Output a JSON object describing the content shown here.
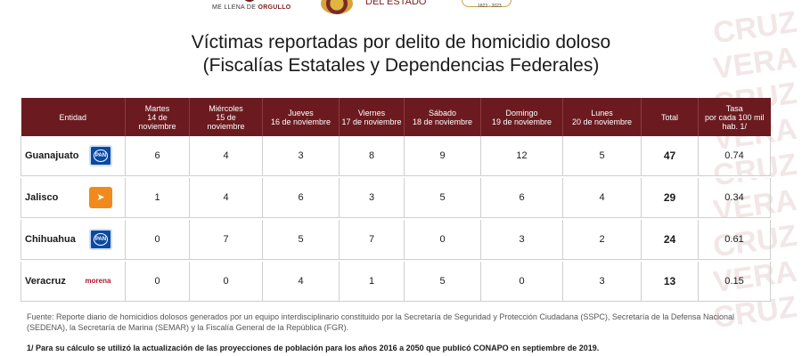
{
  "header": {
    "logo_left_text_a": "ME LLENA DE ",
    "logo_left_text_b": "ORGULLO",
    "logo_mid_text": "DEL ESTADO",
    "logo_right_text": "1823 - 2023",
    "watermark": [
      "CRUZ",
      "VERA",
      "CRUZ",
      "VERA",
      "CRUZ",
      "VERA",
      "CRUZ",
      "VERA",
      "CRUZ"
    ]
  },
  "title": {
    "line1": "Víctimas reportadas por delito de homicidio doloso",
    "line2": "(Fiscalías Estatales y Dependencias Federales)"
  },
  "table": {
    "headers": {
      "entidad": "Entidad",
      "martes_a": "Martes",
      "martes_b": "14 de noviembre",
      "miercoles_a": "Miércoles",
      "miercoles_b": "15 de",
      "miercoles_c": "noviembre",
      "jueves_a": "Jueves",
      "jueves_b": "16 de noviembre",
      "viernes_a": "Viernes",
      "viernes_b": "17 de noviembre",
      "sabado_a": "Sábado",
      "sabado_b": "18 de noviembre",
      "domingo_a": "Domingo",
      "domingo_b": "19 de noviembre",
      "lunes_a": "Lunes",
      "lunes_b": "20 de noviembre",
      "total": "Total",
      "tasa_a": "Tasa",
      "tasa_b": "por cada 100 mil",
      "tasa_c": "hab. 1/"
    },
    "rows": [
      {
        "entidad": "Guanajuato",
        "party": "PAN",
        "values": [
          "6",
          "4",
          "3",
          "8",
          "9",
          "12",
          "5"
        ],
        "total": "47",
        "tasa": "0.74"
      },
      {
        "entidad": "Jalisco",
        "party": "MC",
        "values": [
          "1",
          "4",
          "6",
          "3",
          "5",
          "6",
          "4"
        ],
        "total": "29",
        "tasa": "0.34"
      },
      {
        "entidad": "Chihuahua",
        "party": "PAN",
        "values": [
          "0",
          "7",
          "5",
          "7",
          "0",
          "3",
          "2"
        ],
        "total": "24",
        "tasa": "0.61"
      },
      {
        "entidad": "Veracruz",
        "party": "morena",
        "values": [
          "0",
          "0",
          "4",
          "1",
          "5",
          "0",
          "3"
        ],
        "total": "13",
        "tasa": "0.15"
      }
    ]
  },
  "footer": {
    "fuente": "Fuente: Reporte diario de homicidios dolosos generados por un equipo interdisciplinario constituido por la Secretaría de Seguridad y Protección Ciudadana (SSPC), Secretaría de la Defensa Nacional (SEDENA), la Secretaría de Marina (SEMAR) y la Fiscalía General de la República (FGR).",
    "nota": "1/ Para su cálculo se utilizó la actualización de las proyecciones de población para los años 2016 a 2050 que publicó CONAPO en septiembre de 2019."
  },
  "colors": {
    "header_bg": "#6b1b1f",
    "pan": "#0a4aa3",
    "mc": "#f08a1c",
    "morena": "#b8122e"
  }
}
